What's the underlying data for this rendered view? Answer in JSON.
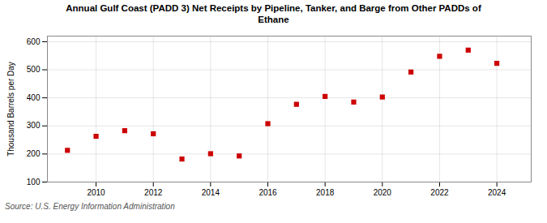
{
  "chart_data": {
    "type": "scatter",
    "title": "Annual Gulf Coast (PADD 3) Net Receipts by Pipeline, Tanker, and Barge from Other PADDs of\nEthane",
    "ylabel": "Thousand Barrels per Day",
    "source": "Source: U.S. Energy Information Administration",
    "x": [
      2009,
      2010,
      2011,
      2012,
      2013,
      2014,
      2015,
      2016,
      2017,
      2018,
      2019,
      2020,
      2021,
      2022,
      2023,
      2024
    ],
    "values": [
      213,
      263,
      283,
      272,
      182,
      201,
      193,
      308,
      377,
      405,
      385,
      403,
      492,
      548,
      570,
      523
    ],
    "color": "#cc0000",
    "marker": "square",
    "xlim": [
      2008.3,
      2025.2
    ],
    "xticks": [
      2010,
      2012,
      2014,
      2016,
      2018,
      2020,
      2022,
      2024
    ],
    "ylim": [
      100,
      620
    ],
    "yticks": [
      100,
      200,
      300,
      400,
      500,
      600
    ],
    "grid": true
  }
}
